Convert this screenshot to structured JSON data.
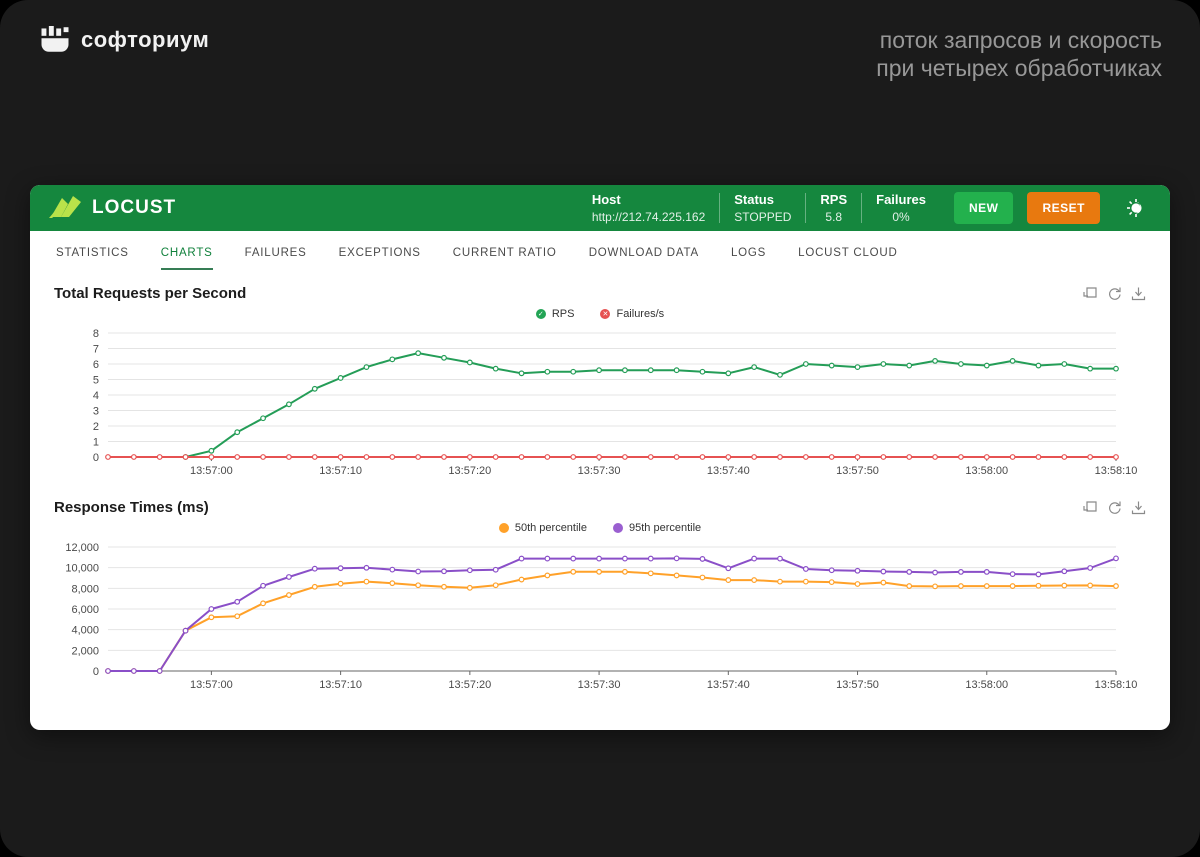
{
  "slide": {
    "logo_text": "софториум",
    "title_line1": "поток запросов и скорость",
    "title_line2": "при четырех обработчиках"
  },
  "app": {
    "brand": "LOCUST",
    "host_label": "Host",
    "host_value": "http://212.74.225.162",
    "status_label": "Status",
    "status_value": "STOPPED",
    "rps_label": "RPS",
    "rps_value": "5.8",
    "failures_label": "Failures",
    "failures_value": "0%",
    "new_button": "NEW",
    "reset_button": "RESET",
    "theme_toggle_icon": "sun-moon-icon"
  },
  "tabs": {
    "items": [
      "STATISTICS",
      "CHARTS",
      "FAILURES",
      "EXCEPTIONS",
      "CURRENT RATIO",
      "DOWNLOAD DATA",
      "LOGS",
      "LOCUST CLOUD"
    ],
    "active": "CHARTS"
  },
  "toolbox_icons": [
    "data-zoom-icon",
    "restore-icon",
    "save-image-icon"
  ],
  "colors": {
    "header_green": "#15873e",
    "new_button_green": "#23b14d",
    "reset_button_orange": "#e8790f",
    "active_tab_green": "#11813c",
    "rps_line": "#249d57",
    "failures_line": "#e65252",
    "p50_line": "#ffa129",
    "p95_line": "#8a4fc8"
  },
  "chart_data": [
    {
      "type": "line",
      "title": "Total Requests per Second",
      "xlabel": "",
      "ylabel": "",
      "grid": true,
      "legend_position": "top-center",
      "ylim": [
        0,
        8
      ],
      "y_ticks": [
        0,
        1,
        2,
        3,
        4,
        5,
        6,
        7,
        8
      ],
      "y_tick_labels": [
        "0",
        "1",
        "2",
        "3",
        "4",
        "5",
        "6",
        "7",
        "8"
      ],
      "x": [
        "13:56:52",
        "13:56:54",
        "13:56:56",
        "13:56:58",
        "13:57:00",
        "13:57:02",
        "13:57:04",
        "13:57:06",
        "13:57:08",
        "13:57:10",
        "13:57:12",
        "13:57:14",
        "13:57:16",
        "13:57:18",
        "13:57:20",
        "13:57:22",
        "13:57:24",
        "13:57:26",
        "13:57:28",
        "13:57:30",
        "13:57:32",
        "13:57:34",
        "13:57:36",
        "13:57:38",
        "13:57:40",
        "13:57:42",
        "13:57:44",
        "13:57:46",
        "13:57:48",
        "13:57:50",
        "13:57:52",
        "13:57:54",
        "13:57:56",
        "13:57:58",
        "13:58:00",
        "13:58:02",
        "13:58:04",
        "13:58:06",
        "13:58:08",
        "13:58:10"
      ],
      "x_tick_labels": [
        "13:57:00",
        "13:57:10",
        "13:57:20",
        "13:57:30",
        "13:57:40",
        "13:57:50",
        "13:58:00",
        "13:58:10"
      ],
      "legend": [
        {
          "label": "RPS",
          "marker": "check-circle",
          "color": "#249d57"
        },
        {
          "label": "Failures/s",
          "marker": "cross-circle",
          "color": "#e65252"
        }
      ],
      "series": [
        {
          "name": "RPS",
          "color": "#249d57",
          "values": [
            null,
            null,
            null,
            0,
            0.4,
            1.6,
            2.5,
            3.4,
            4.4,
            5.1,
            5.8,
            6.3,
            6.7,
            6.4,
            6.1,
            5.7,
            5.4,
            5.5,
            5.5,
            5.6,
            5.6,
            5.6,
            5.6,
            5.5,
            5.4,
            5.8,
            5.3,
            6.0,
            5.9,
            5.8,
            6.0,
            5.9,
            6.2,
            6.0,
            5.9,
            6.2,
            5.9,
            6.0,
            5.7,
            5.7
          ]
        },
        {
          "name": "Failures/s",
          "color": "#e65252",
          "values": [
            0,
            0,
            0,
            0,
            0,
            0,
            0,
            0,
            0,
            0,
            0,
            0,
            0,
            0,
            0,
            0,
            0,
            0,
            0,
            0,
            0,
            0,
            0,
            0,
            0,
            0,
            0,
            0,
            0,
            0,
            0,
            0,
            0,
            0,
            0,
            0,
            0,
            0,
            0,
            0
          ]
        }
      ]
    },
    {
      "type": "line",
      "title": "Response Times (ms)",
      "xlabel": "",
      "ylabel": "",
      "grid": true,
      "legend_position": "top-center",
      "ylim": [
        0,
        12000
      ],
      "y_ticks": [
        0,
        2000,
        4000,
        6000,
        8000,
        10000,
        12000
      ],
      "y_tick_labels": [
        "0",
        "2,000",
        "4,000",
        "6,000",
        "8,000",
        "10,000",
        "12,000"
      ],
      "x": [
        "13:56:52",
        "13:56:54",
        "13:56:56",
        "13:56:58",
        "13:57:00",
        "13:57:02",
        "13:57:04",
        "13:57:06",
        "13:57:08",
        "13:57:10",
        "13:57:12",
        "13:57:14",
        "13:57:16",
        "13:57:18",
        "13:57:20",
        "13:57:22",
        "13:57:24",
        "13:57:26",
        "13:57:28",
        "13:57:30",
        "13:57:32",
        "13:57:34",
        "13:57:36",
        "13:57:38",
        "13:57:40",
        "13:57:42",
        "13:57:44",
        "13:57:46",
        "13:57:48",
        "13:57:50",
        "13:57:52",
        "13:57:54",
        "13:57:56",
        "13:57:58",
        "13:58:00",
        "13:58:02",
        "13:58:04",
        "13:58:06",
        "13:58:08",
        "13:58:10"
      ],
      "x_tick_labels": [
        "13:57:00",
        "13:57:10",
        "13:57:20",
        "13:57:30",
        "13:57:40",
        "13:57:50",
        "13:58:00",
        "13:58:10"
      ],
      "legend": [
        {
          "label": "50th percentile",
          "marker": "dot",
          "color": "#ffa129"
        },
        {
          "label": "95th percentile",
          "marker": "dot",
          "color": "#8a4fc8"
        }
      ],
      "series": [
        {
          "name": "50th percentile",
          "color": "#ffa129",
          "values": [
            0,
            0,
            0,
            3900,
            5200,
            5300,
            6550,
            7350,
            8150,
            8450,
            8650,
            8500,
            8300,
            8150,
            8050,
            8300,
            8850,
            9250,
            9600,
            9600,
            9600,
            9450,
            9250,
            9050,
            8800,
            8800,
            8650,
            8650,
            8600,
            8420,
            8560,
            8220,
            8190,
            8220,
            8220,
            8220,
            8250,
            8270,
            8280,
            8220
          ]
        },
        {
          "name": "95th percentile",
          "color": "#8a4fc8",
          "values": [
            0,
            0,
            0,
            3900,
            6000,
            6700,
            8250,
            9100,
            9900,
            9950,
            9990,
            9810,
            9630,
            9650,
            9750,
            9800,
            10880,
            10880,
            10880,
            10880,
            10880,
            10880,
            10900,
            10845,
            9940,
            10880,
            10875,
            9875,
            9750,
            9700,
            9625,
            9590,
            9530,
            9590,
            9590,
            9375,
            9345,
            9650,
            9970,
            10900
          ]
        }
      ]
    }
  ]
}
